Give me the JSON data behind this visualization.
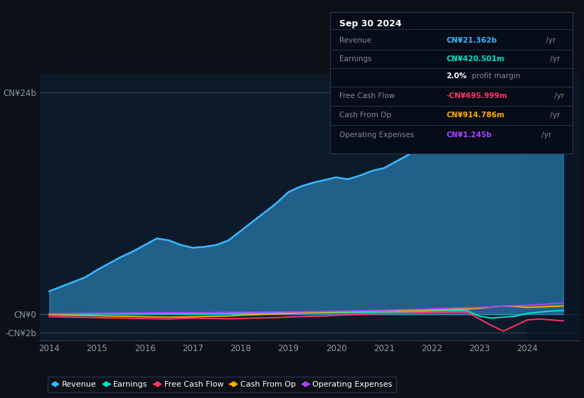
{
  "bg_color": "#0d1117",
  "chart_bg": "#0d1a2a",
  "revenue_color": "#38b6ff",
  "earnings_color": "#00e5c8",
  "fcf_color": "#ff3366",
  "cashfromop_color": "#ffaa00",
  "opex_color": "#aa44ff",
  "grid_color": "#1e3050",
  "zero_line_color": "#ffffff",
  "years": [
    2014.0,
    2014.25,
    2014.5,
    2014.75,
    2015.0,
    2015.25,
    2015.5,
    2015.75,
    2016.0,
    2016.25,
    2016.5,
    2016.75,
    2017.0,
    2017.25,
    2017.5,
    2017.75,
    2018.0,
    2018.25,
    2018.5,
    2018.75,
    2019.0,
    2019.25,
    2019.5,
    2019.75,
    2020.0,
    2020.25,
    2020.5,
    2020.75,
    2021.0,
    2021.25,
    2021.5,
    2021.75,
    2022.0,
    2022.25,
    2022.5,
    2022.75,
    2023.0,
    2023.25,
    2023.5,
    2023.75,
    2024.0,
    2024.25,
    2024.5,
    2024.75
  ],
  "revenue": [
    2.5,
    3.0,
    3.5,
    4.0,
    4.8,
    5.5,
    6.2,
    6.8,
    7.5,
    8.2,
    8.0,
    7.5,
    7.2,
    7.3,
    7.5,
    8.0,
    9.0,
    10.0,
    11.0,
    12.0,
    13.2,
    13.8,
    14.2,
    14.5,
    14.8,
    14.6,
    15.0,
    15.5,
    15.8,
    16.5,
    17.2,
    18.0,
    19.5,
    21.5,
    22.5,
    22.8,
    22.0,
    20.5,
    19.5,
    19.2,
    19.5,
    20.2,
    20.8,
    21.362
  ],
  "earnings": [
    0.02,
    0.02,
    0.03,
    0.04,
    0.05,
    0.06,
    0.06,
    0.07,
    0.08,
    0.07,
    0.07,
    0.06,
    0.05,
    0.06,
    0.07,
    0.08,
    0.1,
    0.11,
    0.12,
    0.13,
    0.14,
    0.15,
    0.15,
    0.16,
    0.18,
    0.18,
    0.19,
    0.2,
    0.22,
    0.25,
    0.28,
    0.32,
    0.35,
    0.38,
    0.4,
    0.38,
    -0.2,
    -0.4,
    -0.3,
    -0.2,
    0.1,
    0.25,
    0.35,
    0.42
  ],
  "fcf": [
    -0.25,
    -0.28,
    -0.3,
    -0.32,
    -0.35,
    -0.38,
    -0.4,
    -0.42,
    -0.45,
    -0.48,
    -0.5,
    -0.45,
    -0.4,
    -0.42,
    -0.45,
    -0.48,
    -0.45,
    -0.4,
    -0.38,
    -0.35,
    -0.28,
    -0.25,
    -0.2,
    -0.18,
    -0.1,
    -0.05,
    0.0,
    0.05,
    0.1,
    0.12,
    0.15,
    0.18,
    0.2,
    0.22,
    0.25,
    0.22,
    -0.5,
    -1.2,
    -1.8,
    -1.2,
    -0.6,
    -0.5,
    -0.6,
    -0.696
  ],
  "cashfromop": [
    -0.05,
    -0.08,
    -0.1,
    -0.12,
    -0.15,
    -0.18,
    -0.2,
    -0.22,
    -0.25,
    -0.28,
    -0.3,
    -0.28,
    -0.25,
    -0.22,
    -0.2,
    -0.18,
    -0.1,
    -0.05,
    0.0,
    0.05,
    0.1,
    0.15,
    0.2,
    0.25,
    0.28,
    0.3,
    0.32,
    0.35,
    0.38,
    0.4,
    0.42,
    0.45,
    0.48,
    0.52,
    0.55,
    0.58,
    0.65,
    0.8,
    0.9,
    0.85,
    0.75,
    0.8,
    0.86,
    0.915
  ],
  "opex": [
    0.08,
    0.09,
    0.1,
    0.11,
    0.12,
    0.13,
    0.14,
    0.15,
    0.16,
    0.17,
    0.18,
    0.18,
    0.18,
    0.19,
    0.2,
    0.21,
    0.22,
    0.23,
    0.24,
    0.25,
    0.26,
    0.28,
    0.3,
    0.32,
    0.35,
    0.37,
    0.39,
    0.42,
    0.45,
    0.48,
    0.52,
    0.56,
    0.6,
    0.65,
    0.7,
    0.72,
    0.75,
    0.8,
    0.88,
    0.95,
    0.98,
    1.05,
    1.15,
    1.245
  ],
  "xlim": [
    2013.8,
    2025.1
  ],
  "ylim": [
    -2.8,
    26.0
  ],
  "xticks": [
    2014,
    2015,
    2016,
    2017,
    2018,
    2019,
    2020,
    2021,
    2022,
    2023,
    2024
  ],
  "yticks": [
    -2,
    0,
    24
  ],
  "ytick_labels": [
    "-CN¥2b",
    "CN¥0",
    "CN¥24b"
  ],
  "tooltip": {
    "date": "Sep 30 2024",
    "rows": [
      {
        "label": "Revenue",
        "val": "CN¥21.362b",
        "suffix": " /yr",
        "color": "#38b6ff",
        "bold_val": true
      },
      {
        "label": "Earnings",
        "val": "CN¥420.501m",
        "suffix": " /yr",
        "color": "#00e5c8",
        "bold_val": true
      },
      {
        "label": "",
        "val": "2.0%",
        "suffix": " profit margin",
        "color": "white",
        "bold_val": true
      },
      {
        "label": "Free Cash Flow",
        "val": "-CN¥695.999m",
        "suffix": " /yr",
        "color": "#ff3366",
        "bold_val": true
      },
      {
        "label": "Cash From Op",
        "val": "CN¥914.786m",
        "suffix": " /yr",
        "color": "#ffaa00",
        "bold_val": true
      },
      {
        "label": "Operating Expenses",
        "val": "CN¥1.245b",
        "suffix": " /yr",
        "color": "#aa44ff",
        "bold_val": true
      }
    ]
  },
  "legend_items": [
    "Revenue",
    "Earnings",
    "Free Cash Flow",
    "Cash From Op",
    "Operating Expenses"
  ],
  "legend_colors": [
    "#38b6ff",
    "#00e5c8",
    "#ff3366",
    "#ffaa00",
    "#aa44ff"
  ]
}
